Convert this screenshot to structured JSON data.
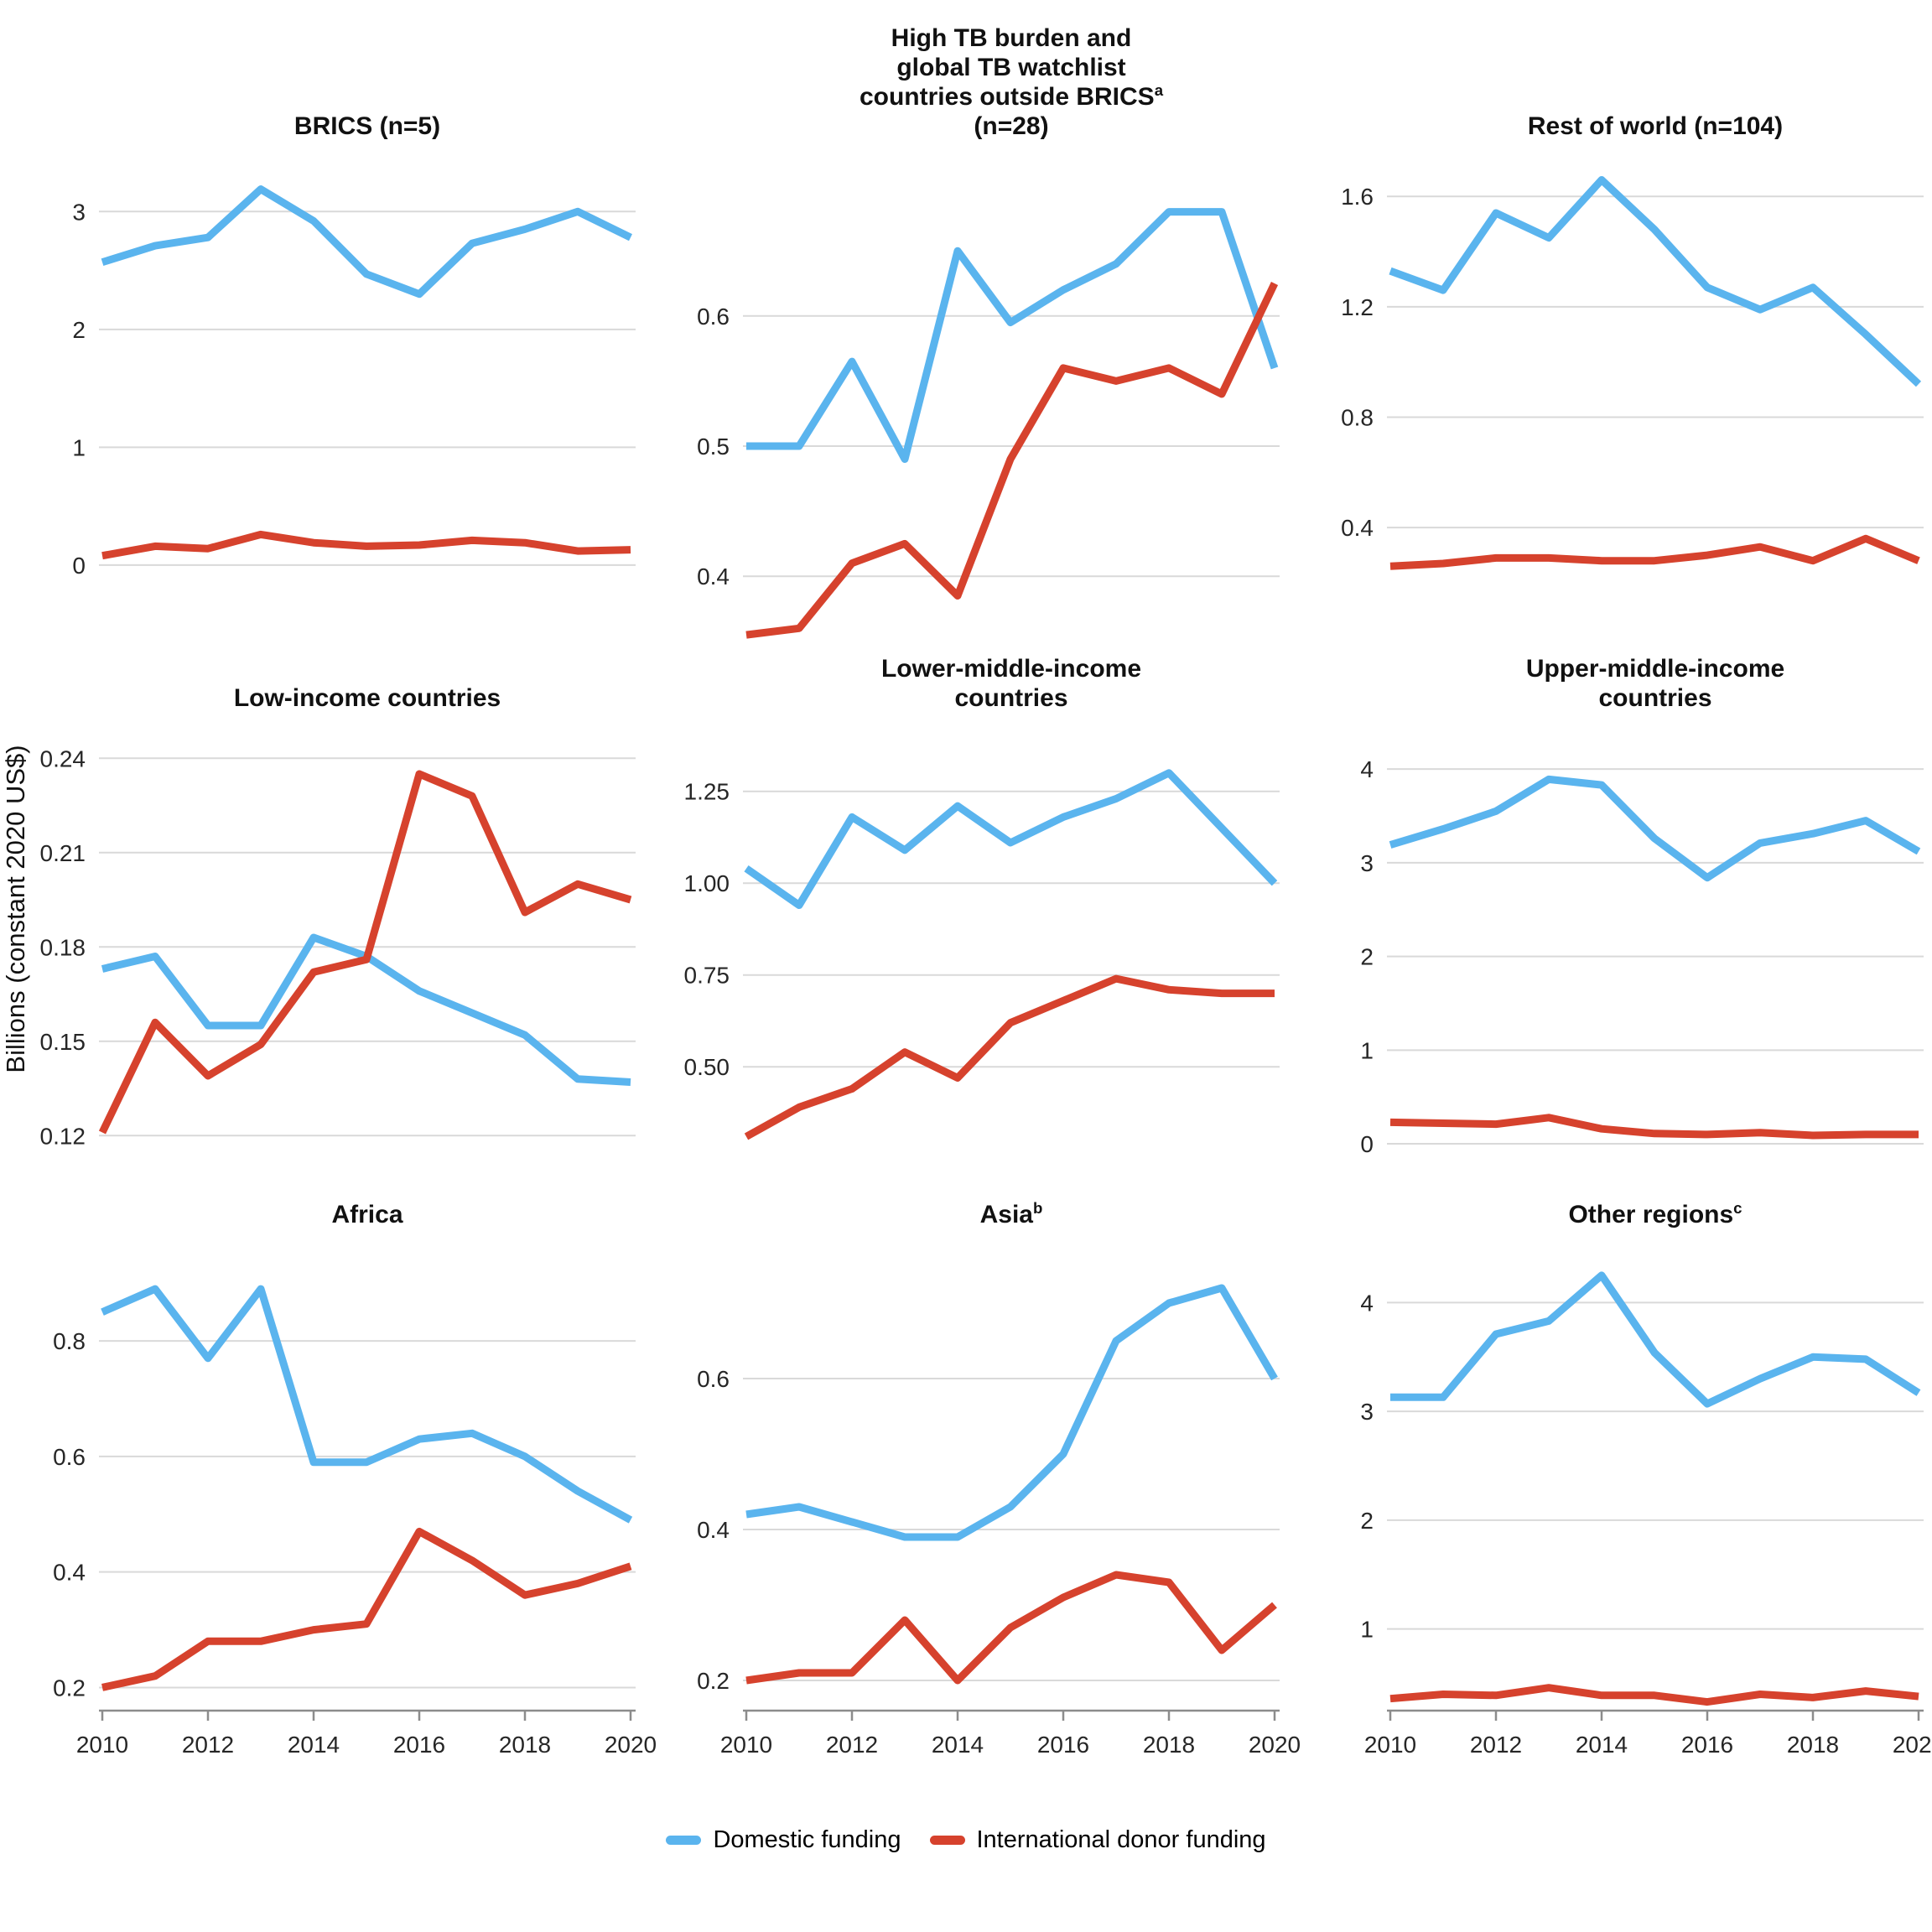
{
  "page": {
    "ylabel": "Billions (constant 2020 US$)",
    "background": "#ffffff"
  },
  "colors": {
    "domestic": "#5ab4ee",
    "donor": "#d6422d",
    "grid": "#d9d9d9",
    "axis": "#8c8c8c",
    "title_text": "#111111",
    "tick_text": "#262626"
  },
  "legend": {
    "items": [
      {
        "label": "Domestic funding",
        "color": "domestic"
      },
      {
        "label": "International donor funding",
        "color": "donor"
      }
    ]
  },
  "x_years": [
    2010,
    2011,
    2012,
    2013,
    2014,
    2015,
    2016,
    2017,
    2018,
    2019,
    2020
  ],
  "x_tick_labels": [
    "2010",
    "2012",
    "2014",
    "2016",
    "2018",
    "2020"
  ],
  "x_tick_years": [
    2010,
    2012,
    2014,
    2016,
    2018,
    2020
  ],
  "chart_data": [
    {
      "type": "line",
      "title_lines": [
        "BRICS (n=5)"
      ],
      "sup": "",
      "sup_line": -1,
      "ylim": [
        -0.15,
        3.55
      ],
      "yticks": [
        {
          "v": 0,
          "label": "0"
        },
        {
          "v": 1,
          "label": "1"
        },
        {
          "v": 2,
          "label": "2"
        },
        {
          "v": 3,
          "label": "3"
        }
      ],
      "x": [
        2010,
        2011,
        2012,
        2013,
        2014,
        2015,
        2016,
        2017,
        2018,
        2019,
        2020
      ],
      "series": [
        {
          "name": "Domestic funding",
          "color": "domestic",
          "values": [
            2.57,
            2.71,
            2.78,
            3.19,
            2.92,
            2.47,
            2.3,
            2.73,
            2.85,
            3.0,
            2.78
          ]
        },
        {
          "name": "International donor funding",
          "color": "donor",
          "values": [
            0.08,
            0.16,
            0.14,
            0.26,
            0.19,
            0.16,
            0.17,
            0.21,
            0.19,
            0.12,
            0.13
          ]
        }
      ]
    },
    {
      "type": "line",
      "title_lines": [
        "High TB burden and",
        "global TB watchlist",
        "countries outside BRICS",
        "(n=28)"
      ],
      "sup": "a",
      "sup_line": 2,
      "ylim": [
        0.395,
        0.73
      ],
      "yticks": [
        {
          "v": 0.4,
          "label": "0.4"
        },
        {
          "v": 0.5,
          "label": "0.5"
        },
        {
          "v": 0.6,
          "label": "0.6"
        }
      ],
      "x": [
        2010,
        2011,
        2012,
        2013,
        2014,
        2015,
        2016,
        2017,
        2018,
        2019,
        2020
      ],
      "series": [
        {
          "name": "Domestic funding",
          "color": "domestic",
          "values": [
            0.5,
            0.5,
            0.565,
            0.49,
            0.65,
            0.595,
            0.62,
            0.64,
            0.68,
            0.68,
            0.56
          ]
        },
        {
          "name": "International donor funding",
          "color": "donor",
          "values": [
            0.355,
            0.36,
            0.41,
            0.425,
            0.385,
            0.49,
            0.56,
            0.55,
            0.56,
            0.54,
            0.625
          ]
        }
      ]
    },
    {
      "type": "line",
      "title_lines": [
        "Rest of world (n=104)"
      ],
      "sup": "",
      "sup_line": -1,
      "ylim": [
        0.2,
        1.78
      ],
      "yticks": [
        {
          "v": 0.4,
          "label": "0.4"
        },
        {
          "v": 0.8,
          "label": "0.8"
        },
        {
          "v": 1.2,
          "label": "1.2"
        },
        {
          "v": 1.6,
          "label": "1.6"
        }
      ],
      "x": [
        2010,
        2011,
        2012,
        2013,
        2014,
        2015,
        2016,
        2017,
        2018,
        2019,
        2020
      ],
      "series": [
        {
          "name": "Domestic funding",
          "color": "domestic",
          "values": [
            1.33,
            1.26,
            1.54,
            1.45,
            1.66,
            1.48,
            1.27,
            1.19,
            1.27,
            1.1,
            0.92
          ]
        },
        {
          "name": "International donor funding",
          "color": "donor",
          "values": [
            0.26,
            0.27,
            0.29,
            0.29,
            0.28,
            0.28,
            0.3,
            0.33,
            0.28,
            0.36,
            0.28
          ]
        }
      ]
    },
    {
      "type": "line",
      "title_lines": [
        "Low-income countries"
      ],
      "sup": "",
      "sup_line": -1,
      "ylim": [
        0.115,
        0.247
      ],
      "yticks": [
        {
          "v": 0.12,
          "label": "0.12"
        },
        {
          "v": 0.15,
          "label": "0.15"
        },
        {
          "v": 0.18,
          "label": "0.18"
        },
        {
          "v": 0.21,
          "label": "0.21"
        },
        {
          "v": 0.24,
          "label": "0.24"
        }
      ],
      "x": [
        2010,
        2011,
        2012,
        2013,
        2014,
        2015,
        2016,
        2017,
        2018,
        2019,
        2020
      ],
      "series": [
        {
          "name": "Domestic funding",
          "color": "domestic",
          "values": [
            0.173,
            0.177,
            0.155,
            0.155,
            0.183,
            0.177,
            0.166,
            0.159,
            0.152,
            0.138,
            0.137
          ]
        },
        {
          "name": "International donor funding",
          "color": "donor",
          "values": [
            0.121,
            0.156,
            0.139,
            0.149,
            0.172,
            0.176,
            0.235,
            0.228,
            0.191,
            0.2,
            0.195
          ]
        }
      ]
    },
    {
      "type": "line",
      "title_lines": [
        "Lower-middle-income",
        "countries"
      ],
      "sup": "",
      "sup_line": -1,
      "ylim": [
        0.27,
        1.4
      ],
      "yticks": [
        {
          "v": 0.5,
          "label": "0.50"
        },
        {
          "v": 0.75,
          "label": "0.75"
        },
        {
          "v": 1.0,
          "label": "1.00"
        },
        {
          "v": 1.25,
          "label": "1.25"
        }
      ],
      "x": [
        2010,
        2011,
        2012,
        2013,
        2014,
        2015,
        2016,
        2017,
        2018,
        2019,
        2020
      ],
      "series": [
        {
          "name": "Domestic funding",
          "color": "domestic",
          "values": [
            1.04,
            0.94,
            1.18,
            1.09,
            1.21,
            1.11,
            1.18,
            1.23,
            1.3,
            1.15,
            1.0
          ]
        },
        {
          "name": "International donor funding",
          "color": "donor",
          "values": [
            0.31,
            0.39,
            0.44,
            0.54,
            0.47,
            0.62,
            0.68,
            0.74,
            0.71,
            0.7,
            0.7
          ]
        }
      ]
    },
    {
      "type": "line",
      "title_lines": [
        "Upper-middle-income",
        "countries"
      ],
      "sup": "",
      "sup_line": -1,
      "ylim": [
        -0.08,
        4.35
      ],
      "yticks": [
        {
          "v": 0,
          "label": "0"
        },
        {
          "v": 1,
          "label": "1"
        },
        {
          "v": 2,
          "label": "2"
        },
        {
          "v": 3,
          "label": "3"
        },
        {
          "v": 4,
          "label": "4"
        }
      ],
      "x": [
        2010,
        2011,
        2012,
        2013,
        2014,
        2015,
        2016,
        2017,
        2018,
        2019,
        2020
      ],
      "series": [
        {
          "name": "Domestic funding",
          "color": "domestic",
          "values": [
            3.19,
            3.36,
            3.55,
            3.89,
            3.83,
            3.26,
            2.84,
            3.21,
            3.31,
            3.45,
            3.12
          ]
        },
        {
          "name": "International donor funding",
          "color": "donor",
          "values": [
            0.23,
            0.22,
            0.21,
            0.28,
            0.16,
            0.11,
            0.1,
            0.12,
            0.09,
            0.1,
            0.1
          ]
        }
      ]
    },
    {
      "type": "line",
      "title_lines": [
        "Africa"
      ],
      "sup": "",
      "sup_line": -1,
      "ylim": [
        0.16,
        0.97
      ],
      "yticks": [
        {
          "v": 0.2,
          "label": "0.2"
        },
        {
          "v": 0.4,
          "label": "0.4"
        },
        {
          "v": 0.6,
          "label": "0.6"
        },
        {
          "v": 0.8,
          "label": "0.8"
        }
      ],
      "x": [
        2010,
        2011,
        2012,
        2013,
        2014,
        2015,
        2016,
        2017,
        2018,
        2019,
        2020
      ],
      "series": [
        {
          "name": "Domestic funding",
          "color": "domestic",
          "values": [
            0.85,
            0.89,
            0.77,
            0.89,
            0.59,
            0.59,
            0.63,
            0.64,
            0.6,
            0.54,
            0.49
          ]
        },
        {
          "name": "International donor funding",
          "color": "donor",
          "values": [
            0.2,
            0.22,
            0.28,
            0.28,
            0.3,
            0.31,
            0.47,
            0.42,
            0.36,
            0.38,
            0.41
          ]
        }
      ]
    },
    {
      "type": "line",
      "title_lines": [
        "Asia"
      ],
      "sup": "b",
      "sup_line": 0,
      "ylim": [
        0.16,
        0.78
      ],
      "yticks": [
        {
          "v": 0.2,
          "label": "0.2"
        },
        {
          "v": 0.4,
          "label": "0.4"
        },
        {
          "v": 0.6,
          "label": "0.6"
        }
      ],
      "x": [
        2010,
        2011,
        2012,
        2013,
        2014,
        2015,
        2016,
        2017,
        2018,
        2019,
        2020
      ],
      "series": [
        {
          "name": "Domestic funding",
          "color": "domestic",
          "values": [
            0.42,
            0.43,
            0.41,
            0.39,
            0.39,
            0.43,
            0.5,
            0.65,
            0.7,
            0.72,
            0.6
          ]
        },
        {
          "name": "International donor funding",
          "color": "donor",
          "values": [
            0.2,
            0.21,
            0.21,
            0.28,
            0.2,
            0.27,
            0.31,
            0.34,
            0.33,
            0.24,
            0.3
          ]
        }
      ]
    },
    {
      "type": "line",
      "title_lines": [
        "Other regions"
      ],
      "sup": "c",
      "sup_line": 0,
      "ylim": [
        0.25,
        4.55
      ],
      "yticks": [
        {
          "v": 1,
          "label": "1"
        },
        {
          "v": 2,
          "label": "2"
        },
        {
          "v": 3,
          "label": "3"
        },
        {
          "v": 4,
          "label": "4"
        }
      ],
      "x": [
        2010,
        2011,
        2012,
        2013,
        2014,
        2015,
        2016,
        2017,
        2018,
        2019,
        2020
      ],
      "series": [
        {
          "name": "Domestic funding",
          "color": "domestic",
          "values": [
            3.13,
            3.13,
            3.71,
            3.83,
            4.25,
            3.54,
            3.07,
            3.3,
            3.5,
            3.48,
            3.17
          ]
        },
        {
          "name": "International donor funding",
          "color": "donor",
          "values": [
            0.36,
            0.4,
            0.39,
            0.46,
            0.39,
            0.39,
            0.33,
            0.4,
            0.37,
            0.43,
            0.38
          ]
        }
      ]
    }
  ]
}
